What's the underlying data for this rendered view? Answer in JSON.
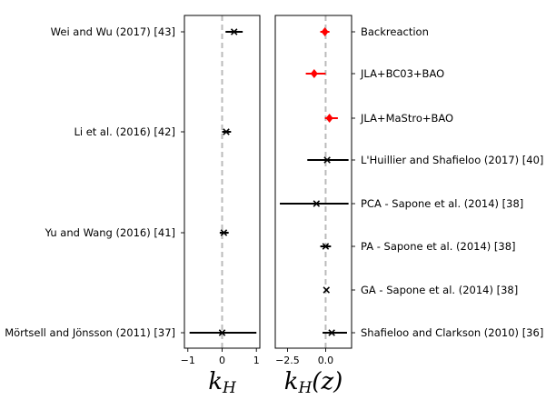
{
  "chart_data": [
    {
      "type": "scatter",
      "xlabel": "k_H",
      "xlim": [
        -1.1,
        1.1
      ],
      "xticks": [
        -1,
        0,
        1
      ],
      "xtick_labels": [
        "−1",
        "0",
        "1"
      ],
      "reference_line": {
        "x": 0,
        "style": "dashed",
        "color": "#bbbbbb"
      },
      "label_side": "left",
      "rows": [
        {
          "label": "Wei and Wu (2017) [43]",
          "value": 0.35,
          "err_low": 0.25,
          "err_high": 0.25,
          "marker": "x",
          "color": "#000000"
        },
        {
          "label": "Li et al. (2016) [42]",
          "value": 0.12,
          "err_low": 0.12,
          "err_high": 0.14,
          "marker": "x",
          "color": "#000000"
        },
        {
          "label": "Yu and Wang (2016) [41]",
          "value": 0.05,
          "err_low": 0.12,
          "err_high": 0.14,
          "marker": "x",
          "color": "#000000"
        },
        {
          "label": "Mörtsell and Jönsson (2011) [37]",
          "value": 0.0,
          "err_low": 0.95,
          "err_high": 1.0,
          "marker": "x",
          "color": "#000000"
        }
      ]
    },
    {
      "type": "scatter",
      "xlabel": "k_H(z)",
      "xlim": [
        -3.3,
        1.7
      ],
      "xticks": [
        -2.5,
        0.0
      ],
      "xtick_labels": [
        "−2.5",
        "0.0"
      ],
      "reference_line": {
        "x": 0,
        "style": "dashed",
        "color": "#bbbbbb"
      },
      "label_side": "right",
      "rows": [
        {
          "label": "Backreaction",
          "value": -0.05,
          "err_low": 0.3,
          "err_high": 0.3,
          "marker": "diamond",
          "color": "#ff0000"
        },
        {
          "label": "JLA+BC03+BAO",
          "value": -0.75,
          "err_low": 0.55,
          "err_high": 0.75,
          "marker": "diamond",
          "color": "#ff0000"
        },
        {
          "label": "JLA+MaStro+BAO",
          "value": 0.25,
          "err_low": 0.3,
          "err_high": 0.55,
          "marker": "diamond",
          "color": "#ff0000"
        },
        {
          "label": "L'Huillier and Shafieloo (2017) [40]",
          "value": 0.1,
          "err_low": 1.3,
          "err_high": 1.4,
          "marker": "x",
          "color": "#000000"
        },
        {
          "label": "PCA - Sapone et al. (2014) [38]",
          "value": -0.6,
          "err_low": 2.4,
          "err_high": 2.1,
          "marker": "x",
          "color": "#000000"
        },
        {
          "label": "PA - Sapone et al. (2014) [38]",
          "value": 0.0,
          "err_low": 0.35,
          "err_high": 0.35,
          "marker": "x",
          "color": "#000000"
        },
        {
          "label": "GA - Sapone et al. (2014) [38]",
          "value": 0.05,
          "err_low": 0.0,
          "err_high": 0.0,
          "marker": "x",
          "color": "#000000"
        },
        {
          "label": "Shafieloo and Clarkson (2010) [36]",
          "value": 0.4,
          "err_low": 0.6,
          "err_high": 1.0,
          "marker": "x",
          "color": "#000000"
        }
      ]
    }
  ]
}
